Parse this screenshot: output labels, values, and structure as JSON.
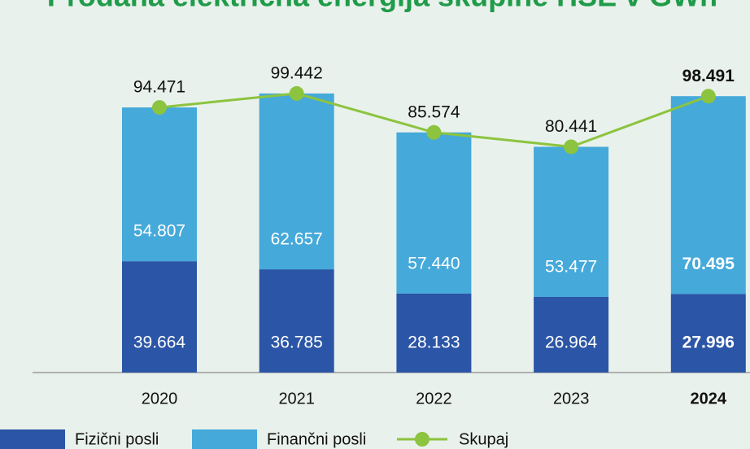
{
  "chart_data": {
    "type": "stacked-bar-line",
    "title": "Prodana električna energija skupine HSE v GWh",
    "categories": [
      "2020",
      "2021",
      "2022",
      "2023",
      "2024"
    ],
    "highlight_category": "2024",
    "series": [
      {
        "name": "Fizični posli",
        "color": "#2b55a6",
        "values": [
          39.664,
          36.785,
          28.133,
          26.964,
          27.996
        ],
        "value_labels": [
          "39.664",
          "36.785",
          "28.133",
          "26.964",
          "27.996"
        ]
      },
      {
        "name": "Finančni posli",
        "color": "#45a9da",
        "values": [
          54.807,
          62.657,
          57.44,
          53.477,
          70.495
        ],
        "value_labels": [
          "54.807",
          "62.657",
          "57.440",
          "53.477",
          "70.495"
        ]
      },
      {
        "name": "Skupaj",
        "color": "#8cc43f",
        "type": "line",
        "values": [
          94.471,
          99.442,
          85.574,
          80.441,
          98.491
        ],
        "value_labels": [
          "94.471",
          "99.442",
          "85.574",
          "80.441",
          "98.491"
        ]
      }
    ]
  }
}
